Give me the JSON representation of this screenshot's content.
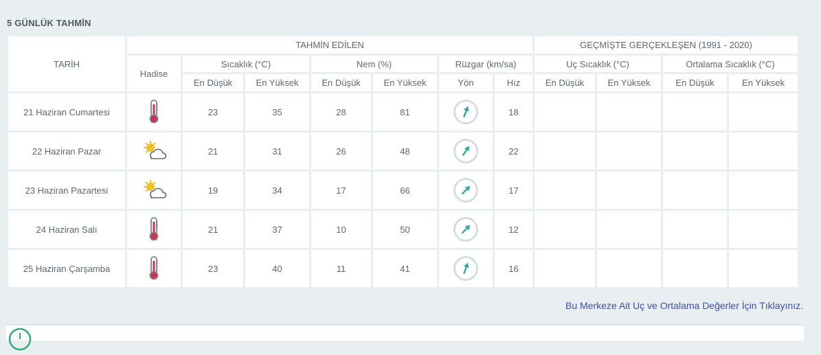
{
  "section_title": "5 GÜNLÜK TAHMİN",
  "header": {
    "tarih": "TARİH",
    "forecast_group": "TAHMİN EDİLEN",
    "history_group": "GEÇMİŞTE GERÇEKLEŞEN (1991 - 2020)",
    "hadise": "Hadise",
    "temp": "Sıcaklık (°C)",
    "humidity": "Nem (%)",
    "wind": "Rüzgar (km/sa)",
    "extreme_temp": "Uç Sıcaklık (°C)",
    "avg_temp": "Ortalama Sıcaklık (°C)",
    "min": "En Düşük",
    "max": "En Yüksek",
    "direction": "Yön",
    "speed": "Hız"
  },
  "rows": [
    {
      "date": "21 Haziran Cumartesi",
      "icon": "thermometer-icon",
      "tmin": "23",
      "tmax": "35",
      "hmin": "28",
      "hmax": "81",
      "wspeed": "18",
      "wdir": 200
    },
    {
      "date": "22 Haziran Pazar",
      "icon": "partly-cloudy-icon",
      "tmin": "21",
      "tmax": "31",
      "hmin": "26",
      "hmax": "48",
      "wspeed": "22",
      "wdir": 215
    },
    {
      "date": "23 Haziran Pazartesi",
      "icon": "partly-cloudy-icon",
      "tmin": "19",
      "tmax": "34",
      "hmin": "17",
      "hmax": "66",
      "wspeed": "17",
      "wdir": 225
    },
    {
      "date": "24 Haziran Salı",
      "icon": "thermometer-icon",
      "tmin": "21",
      "tmax": "37",
      "hmin": "10",
      "hmax": "50",
      "wspeed": "12",
      "wdir": 225
    },
    {
      "date": "25 Haziran Çarşamba",
      "icon": "thermometer-icon",
      "tmin": "23",
      "tmax": "40",
      "hmin": "11",
      "hmax": "41",
      "wspeed": "16",
      "wdir": 200
    }
  ],
  "link_text": "Bu Merkeze Ait Uç ve Ortalama Değerler İçin Tıklayınız.",
  "colors": {
    "min": "#2e86ab",
    "max": "#d0334d",
    "hmin": "#e0a135",
    "hmax": "#7c7c9c",
    "wind": "#33aa99",
    "link": "#3a4fa8"
  }
}
